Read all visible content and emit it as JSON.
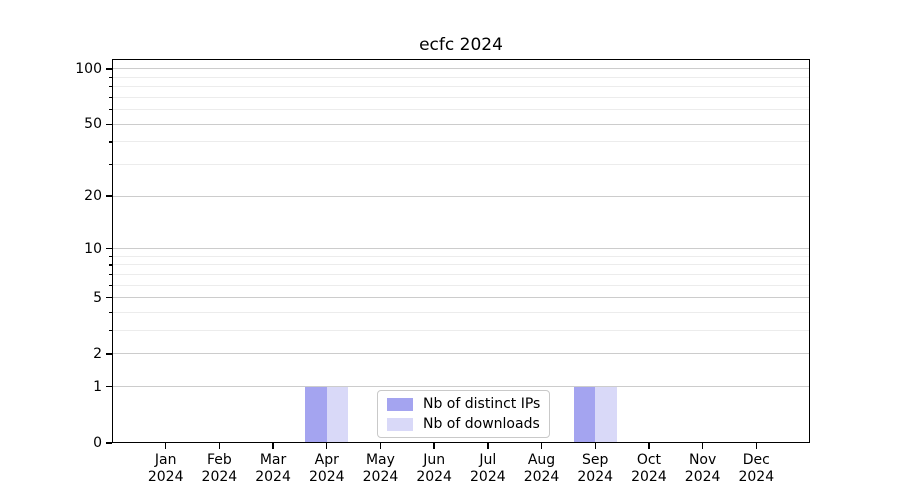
{
  "chart_data": {
    "type": "bar",
    "title": "ecfc 2024",
    "categories": [
      "Jan 2024",
      "Feb 2024",
      "Mar 2024",
      "Apr 2024",
      "May 2024",
      "Jun 2024",
      "Jul 2024",
      "Aug 2024",
      "Sep 2024",
      "Oct 2024",
      "Nov 2024",
      "Dec 2024"
    ],
    "series": [
      {
        "name": "Nb of distinct IPs",
        "color": "#a4a4f0",
        "values": [
          0,
          0,
          0,
          1,
          0,
          0,
          0,
          0,
          1,
          0,
          0,
          0
        ]
      },
      {
        "name": "Nb of downloads",
        "color": "#d9d9f8",
        "values": [
          0,
          0,
          0,
          1,
          0,
          0,
          0,
          0,
          1,
          0,
          0,
          0
        ]
      }
    ],
    "xlabel": "",
    "ylabel": "",
    "y_scale": "log1p",
    "ylim": [
      0,
      113
    ],
    "y_major_ticks": [
      0,
      1,
      2,
      5,
      10,
      20,
      50,
      100
    ],
    "y_minor_ticks": [
      3,
      4,
      6,
      7,
      8,
      9,
      30,
      40,
      60,
      70,
      80,
      90
    ],
    "grid": true,
    "legend_position": "lower center"
  },
  "colors": {
    "background": "#ffffff",
    "axis": "#000000",
    "grid_major": "#cccccc",
    "grid_minor": "#ececec",
    "legend_border": "#c9c9c9",
    "text": "#000000"
  }
}
